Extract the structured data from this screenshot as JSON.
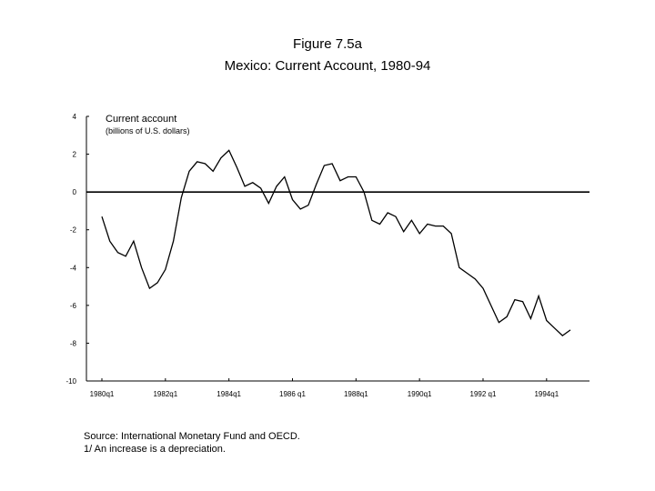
{
  "header": {
    "figure_label": "Figure 7.5a",
    "subtitle": "Mexico: Current Account, 1980-94"
  },
  "legend": {
    "series_label": "Current account",
    "units_label": "(billions of U.S. dollars)"
  },
  "footnotes": {
    "source": "Source: International Monetary Fund and OECD.",
    "note": "1/ An increase is a depreciation."
  },
  "chart_data": {
    "type": "line",
    "title": "Mexico: Current Account, 1980-94",
    "ylabel": "billions of U.S. dollars",
    "xlabel": "",
    "ylim": [
      -10,
      4
    ],
    "yticks": [
      4,
      2,
      0,
      -2,
      -4,
      -6,
      -8,
      -10
    ],
    "ytick_labels": [
      "4",
      "2",
      "0",
      "-2",
      "-4",
      "-6",
      "-8",
      "-10"
    ],
    "xtick_labels": [
      "1980q1",
      "1982q1",
      "1984q1",
      "1986 q1",
      "1988q1",
      "1990q1",
      "1992 q1",
      "1994q1"
    ],
    "xtick_index": [
      0,
      8,
      16,
      24,
      32,
      40,
      48,
      56
    ],
    "zero_line": true,
    "series": [
      {
        "name": "Current account",
        "values": [
          -1.3,
          -2.6,
          -3.2,
          -3.4,
          -2.6,
          -4.0,
          -5.1,
          -4.8,
          -4.1,
          -2.6,
          -0.3,
          1.1,
          1.6,
          1.5,
          1.1,
          1.8,
          2.2,
          1.3,
          0.3,
          0.5,
          0.2,
          -0.6,
          0.3,
          0.8,
          -0.4,
          -0.9,
          -0.7,
          0.4,
          1.4,
          1.5,
          0.6,
          0.8,
          0.8,
          0.0,
          -1.5,
          -1.7,
          -1.1,
          -1.3,
          -2.1,
          -1.5,
          -2.2,
          -1.7,
          -1.8,
          -1.8,
          -2.2,
          -4.0,
          -4.3,
          -4.6,
          -5.1,
          -6.0,
          -6.9,
          -6.6,
          -5.7,
          -5.8,
          -6.7,
          -5.5,
          -6.8,
          -7.2,
          -7.6,
          -7.3
        ]
      }
    ]
  }
}
